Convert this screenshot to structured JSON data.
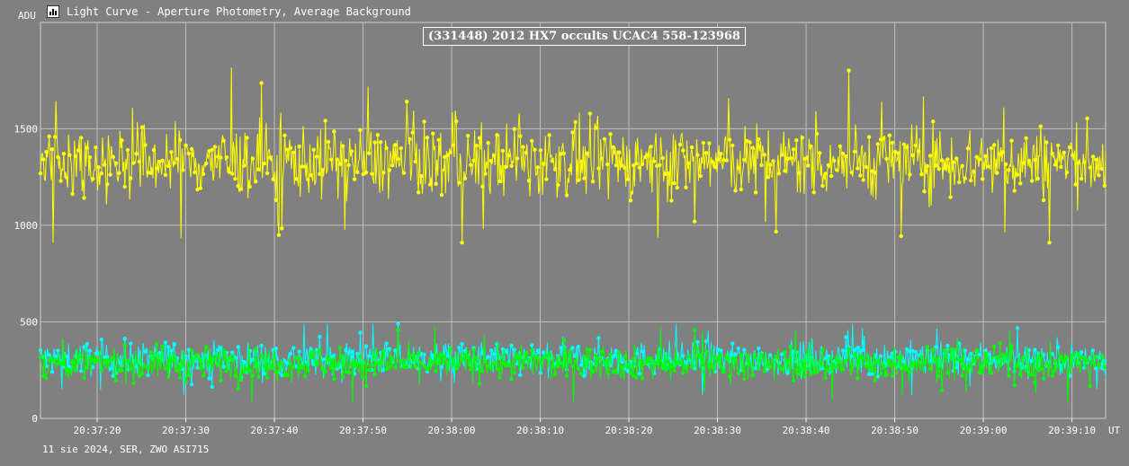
{
  "window": {
    "title": "Light Curve - Aperture Photometry, Average Background",
    "icon": "app-chart-icon"
  },
  "footer": {
    "text": "11 sie 2024, SER, ZWO ASI715"
  },
  "colors": {
    "background": "#808080",
    "grid": "#bdbdbd",
    "target_series": "#ffff00",
    "comparison_series": "#00ffff",
    "background_series": "#00ff00"
  },
  "chart_data": {
    "type": "line",
    "title": "(331448) 2012 HX7 occults UCAC4 558-123968",
    "xlabel": "UT",
    "ylabel": "ADU",
    "xlim": [
      "20:37:13.6",
      "20:39:13.8"
    ],
    "ylim": [
      0,
      1500
    ],
    "grid": true,
    "x_ticks": [
      "20:37:20",
      "20:37:30",
      "20:37:40",
      "20:37:50",
      "20:38:00",
      "20:38:10",
      "20:38:20",
      "20:38:30",
      "20:38:40",
      "20:38:50",
      "20:39:00",
      "20:39:10"
    ],
    "y_ticks": [
      0,
      500,
      1000,
      1500
    ],
    "series": [
      {
        "color": "#ffff00",
        "mean": 1330,
        "spread": 130,
        "values_min": 910,
        "values_max": 1840
      },
      {
        "color": "#00ffff",
        "mean": 310,
        "spread": 60,
        "values_min": 120,
        "values_max": 490
      },
      {
        "color": "#00ff00",
        "mean": 285,
        "spread": 60,
        "values_min": 80,
        "values_max": 470
      }
    ]
  }
}
